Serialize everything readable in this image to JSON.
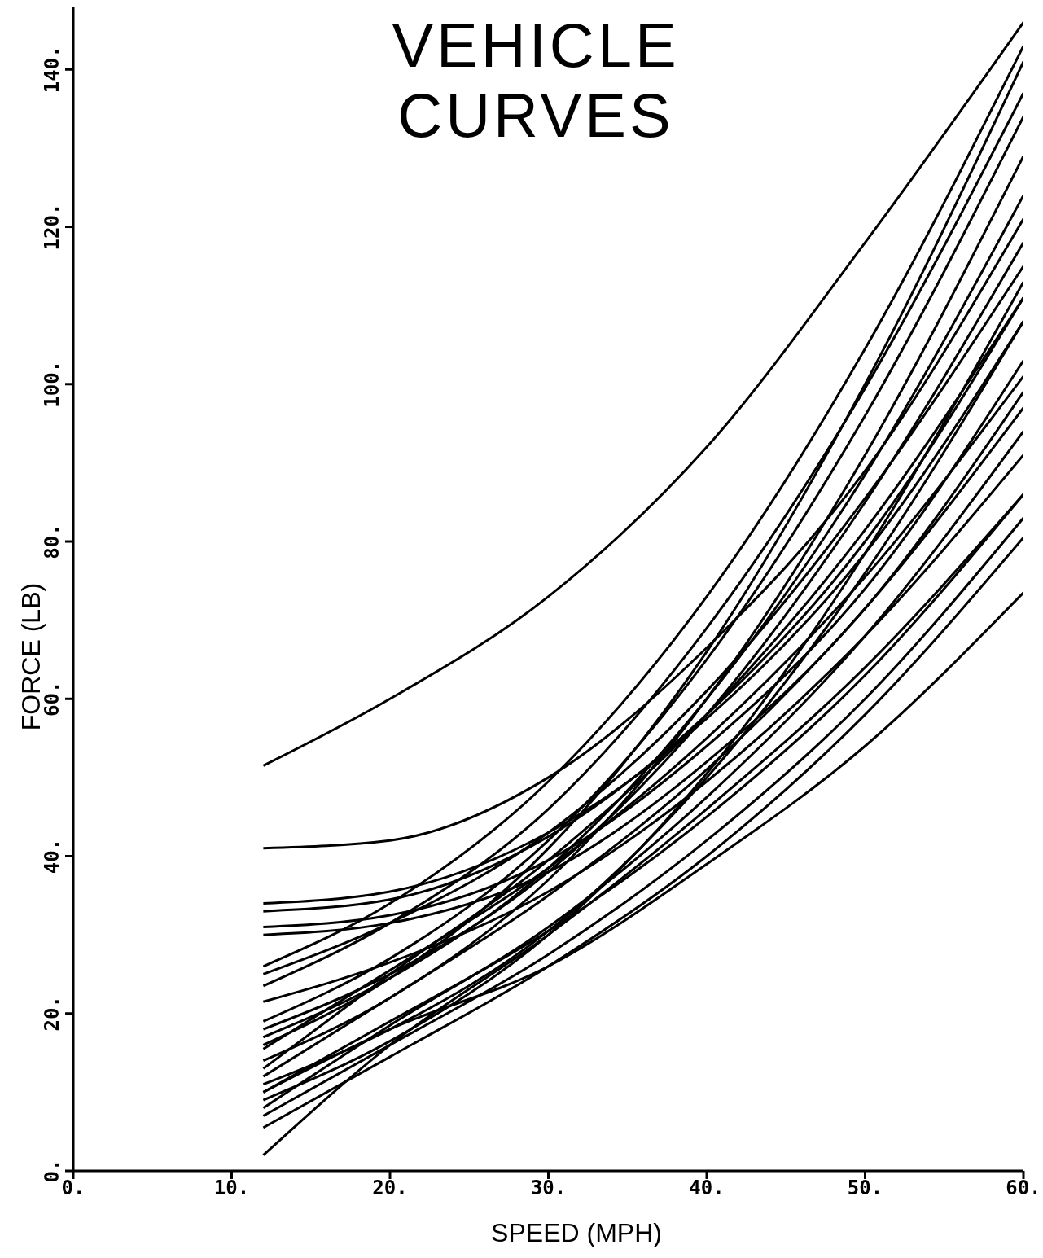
{
  "chart_data": {
    "type": "line",
    "title": "VEHICLE\nCURVES",
    "xlabel": "SPEED (MPH)",
    "ylabel": "FORCE (LB)",
    "x": [
      12,
      20,
      30,
      40,
      50,
      60
    ],
    "xlim": [
      0,
      60
    ],
    "xticks": [
      {
        "value": 0,
        "label": "0."
      },
      {
        "value": 10,
        "label": "10."
      },
      {
        "value": 20,
        "label": "20."
      },
      {
        "value": 30,
        "label": "30."
      },
      {
        "value": 40,
        "label": "40."
      },
      {
        "value": 50,
        "label": "50."
      },
      {
        "value": 60,
        "label": "60."
      }
    ],
    "ylim": [
      0,
      148
    ],
    "yticks": [
      {
        "value": 0,
        "label": "0."
      },
      {
        "value": 20,
        "label": "20."
      },
      {
        "value": 40,
        "label": "40."
      },
      {
        "value": 60,
        "label": "60."
      },
      {
        "value": 80,
        "label": "80."
      },
      {
        "value": 100,
        "label": "100."
      },
      {
        "value": 120,
        "label": "120."
      },
      {
        "value": 140,
        "label": "140."
      }
    ],
    "series": [
      {
        "color": "#000000",
        "values": [
          51.5,
          60,
          73,
          92,
          118,
          146
        ]
      },
      {
        "color": "#000000",
        "values": [
          41,
          42,
          50,
          66.5,
          89,
          121
        ]
      },
      {
        "color": "#000000",
        "values": [
          34,
          35.5,
          43,
          57.5,
          78.5,
          108
        ]
      },
      {
        "color": "#000000",
        "values": [
          33,
          34.5,
          42.5,
          58,
          80,
          111
        ]
      },
      {
        "color": "#000000",
        "values": [
          31,
          32.5,
          39.5,
          54,
          74,
          103
        ]
      },
      {
        "color": "#000000",
        "values": [
          30,
          31.5,
          38,
          52,
          71.5,
          99
        ]
      },
      {
        "color": "#000000",
        "values": [
          26,
          34,
          49.5,
          73,
          104.5,
          143
        ]
      },
      {
        "color": "#000000",
        "values": [
          25,
          31.5,
          43,
          61,
          85.5,
          115
        ]
      },
      {
        "color": "#000000",
        "values": [
          23.5,
          31.5,
          46,
          69,
          99.5,
          137
        ]
      },
      {
        "color": "#000000",
        "values": [
          21.5,
          26.5,
          35.5,
          49.5,
          68,
          91
        ]
      },
      {
        "color": "#000000",
        "values": [
          19,
          27,
          42,
          65,
          96,
          134
        ]
      },
      {
        "color": "#000000",
        "values": [
          18,
          25,
          38,
          58,
          85,
          118
        ]
      },
      {
        "color": "#000000",
        "values": [
          17,
          24.5,
          38.5,
          60,
          88.5,
          124
        ]
      },
      {
        "color": "#000000",
        "values": [
          16,
          24.5,
          41,
          66,
          100,
          141
        ]
      },
      {
        "color": "#000000",
        "values": [
          15.5,
          25.5,
          38.5,
          55,
          75.5,
          101
        ]
      },
      {
        "color": "#000000",
        "values": [
          14,
          22,
          37,
          60,
          91,
          129
        ]
      },
      {
        "color": "#000000",
        "values": [
          13,
          25,
          39.5,
          58,
          81.5,
          111
        ]
      },
      {
        "color": "#000000",
        "values": [
          12,
          22,
          35,
          51,
          71.5,
          97
        ]
      },
      {
        "color": "#000000",
        "values": [
          11,
          18,
          30.5,
          50,
          76,
          108
        ]
      },
      {
        "color": "#000000",
        "values": [
          10,
          19,
          30.5,
          45,
          63,
          86
        ]
      },
      {
        "color": "#000000",
        "values": [
          10,
          18,
          26,
          39,
          54,
          73.5
        ]
      },
      {
        "color": "#000000",
        "values": [
          9,
          16.5,
          30,
          50.5,
          78.5,
          113
        ]
      },
      {
        "color": "#000000",
        "values": [
          8,
          18.5,
          31,
          47.5,
          68,
          94
        ]
      },
      {
        "color": "#000000",
        "values": [
          7,
          16,
          27.5,
          42,
          60,
          83
        ]
      },
      {
        "color": "#000000",
        "values": [
          5.5,
          14.5,
          26,
          40,
          58,
          80.5
        ]
      },
      {
        "color": "#000000",
        "values": [
          2,
          16,
          30,
          46,
          64,
          86
        ]
      }
    ]
  }
}
